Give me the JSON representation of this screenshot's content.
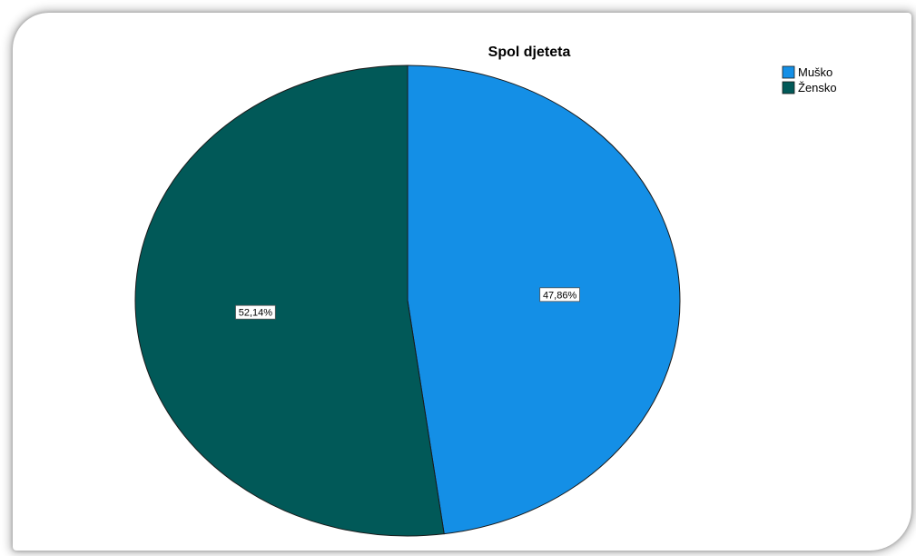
{
  "chart_data": {
    "type": "pie",
    "title": "Spol djeteta",
    "slices": [
      {
        "label": "Muško",
        "value": 47.86,
        "display": "47,86%",
        "color": "#148fe6"
      },
      {
        "label": "Žensko",
        "value": 52.14,
        "display": "52,14%",
        "color": "#015958"
      }
    ],
    "start_angle_deg": 0,
    "direction": "clockwise",
    "legend_position": "top-right"
  }
}
